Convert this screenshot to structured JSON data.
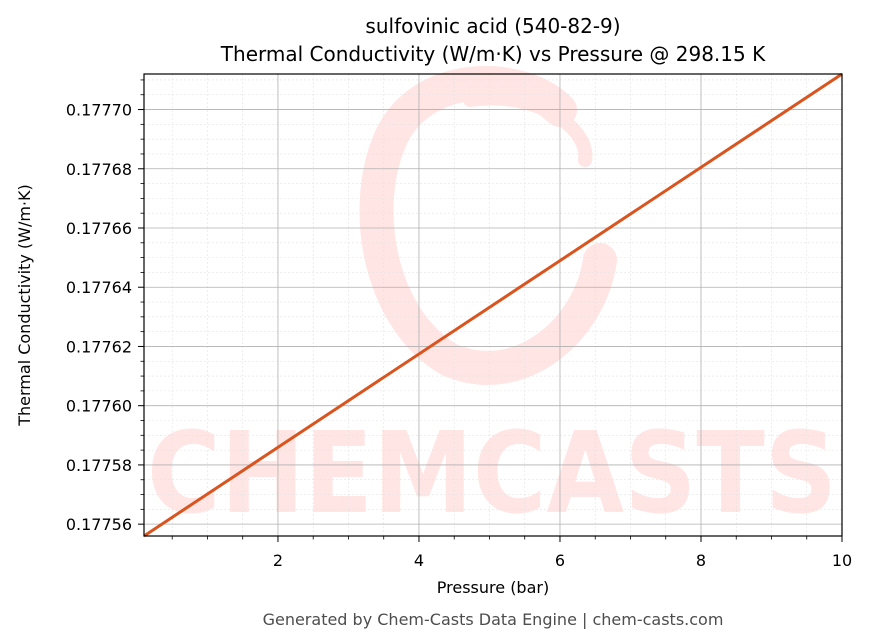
{
  "colors": {
    "line": "#d9541e",
    "grid_major": "#b0b0b0",
    "grid_minor": "#e3e3e3",
    "watermark": "#ffe5e3",
    "footer": "#4d4d4d"
  },
  "watermark": {
    "text": "CHEMCASTS"
  },
  "chart_data": {
    "type": "line",
    "title_line1": "sulfovinic acid (540-82-9)",
    "title_line2": "Thermal Conductivity (W/m·K) vs Pressure @ 298.15 K",
    "xlabel": "Pressure (bar)",
    "ylabel": "Thermal Conductivity (W/m·K)",
    "xlim": [
      0.1,
      10
    ],
    "ylim": [
      0.177556,
      0.177712
    ],
    "xticks": [
      2,
      4,
      6,
      8,
      10
    ],
    "xtick_labels": [
      "2",
      "4",
      "6",
      "8",
      "10"
    ],
    "yticks": [
      0.17756,
      0.17758,
      0.1776,
      0.17762,
      0.17764,
      0.17766,
      0.17768,
      0.1777
    ],
    "ytick_labels": [
      "0.17756",
      "0.17758",
      "0.17760",
      "0.17762",
      "0.17764",
      "0.17766",
      "0.17768",
      "0.17770"
    ],
    "grid": true,
    "minor_grid": true,
    "series": [
      {
        "x": [
          0.1,
          10
        ],
        "y": [
          0.177556,
          0.177712
        ]
      }
    ]
  },
  "footer": "Generated by Chem-Casts Data Engine | chem-casts.com"
}
